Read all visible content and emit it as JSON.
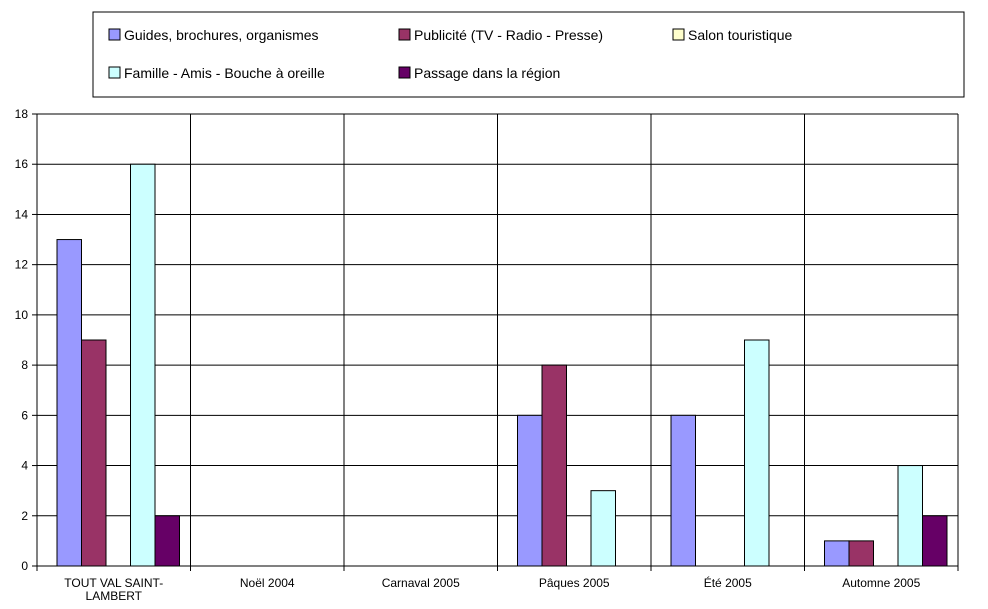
{
  "chart_data": {
    "type": "bar",
    "title": "",
    "xlabel": "",
    "ylabel": "",
    "ylim": [
      0,
      18
    ],
    "ystep": 2,
    "grid": true,
    "legend_position": "top",
    "categories": [
      "TOUT VAL SAINT-LAMBERT",
      "Noël 2004",
      "Carnaval 2005",
      "Pâques 2005",
      "Été 2005",
      "Automne 2005"
    ],
    "category_labels": [
      [
        "TOUT VAL SAINT-",
        "LAMBERT"
      ],
      [
        "Noël 2004"
      ],
      [
        "Carnaval 2005"
      ],
      [
        "Pâques 2005"
      ],
      [
        "Été 2005"
      ],
      [
        "Automne 2005"
      ]
    ],
    "series": [
      {
        "name": "Guides, brochures, organismes",
        "color": "#9999ff",
        "values": [
          13,
          0,
          0,
          6,
          6,
          1
        ]
      },
      {
        "name": "Publicité (TV - Radio - Presse)",
        "color": "#993366",
        "values": [
          9,
          0,
          0,
          8,
          0,
          1
        ]
      },
      {
        "name": "Salon touristique",
        "color": "#ffffcc",
        "values": [
          0,
          0,
          0,
          0,
          0,
          0
        ]
      },
      {
        "name": "Famille - Amis - Bouche à oreille",
        "color": "#ccffff",
        "values": [
          16,
          0,
          0,
          3,
          9,
          4
        ]
      },
      {
        "name": "Passage dans la région",
        "color": "#660066",
        "values": [
          2,
          0,
          0,
          0,
          0,
          2
        ]
      }
    ]
  }
}
